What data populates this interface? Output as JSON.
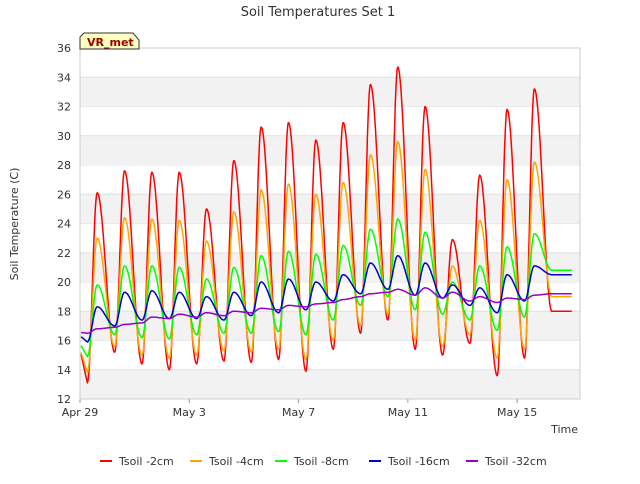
{
  "chart_data": {
    "type": "line",
    "title": "Soil Temperatures Set 1",
    "xlabel": "Time",
    "ylabel": "Soil Temperature (C)",
    "station_badge": "VR_met",
    "xlim": [
      0,
      18.3
    ],
    "ylim": [
      12,
      36
    ],
    "yticks": [
      12,
      14,
      16,
      18,
      20,
      22,
      24,
      26,
      28,
      30,
      32,
      34,
      36
    ],
    "xticks": [
      {
        "day": 0,
        "label": "Apr 29"
      },
      {
        "day": 4,
        "label": "May 3"
      },
      {
        "day": 8,
        "label": "May 7"
      },
      {
        "day": 12,
        "label": "May 11"
      },
      {
        "day": 16,
        "label": "May 15"
      }
    ],
    "x_unit": "days since Apr 29",
    "grid": "horizontal-bands",
    "legend_position": "bottom",
    "series": [
      {
        "name": "Tsoil -2cm",
        "color": "#ff0000",
        "daily_max": [
          26.1,
          27.6,
          27.5,
          27.5,
          25.0,
          28.3,
          30.6,
          30.9,
          29.7,
          30.9,
          33.5,
          34.7,
          32.0,
          22.9,
          27.3,
          31.8,
          33.2
        ],
        "daily_min": [
          13.1,
          15.2,
          14.4,
          14.0,
          14.4,
          14.6,
          14.5,
          14.7,
          13.9,
          15.4,
          16.5,
          17.4,
          15.4,
          15.0,
          15.8,
          13.6,
          14.8,
          18.0
        ]
      },
      {
        "name": "Tsoil -4cm",
        "color": "#ffa500",
        "daily_max": [
          23.0,
          24.4,
          24.3,
          24.2,
          22.8,
          24.8,
          26.3,
          26.7,
          26.0,
          26.8,
          28.7,
          29.6,
          27.7,
          21.1,
          24.2,
          27.0,
          28.2
        ],
        "daily_min": [
          13.8,
          15.6,
          15.0,
          14.8,
          15.0,
          15.3,
          15.2,
          15.4,
          14.7,
          16.0,
          17.0,
          17.8,
          16.0,
          15.6,
          16.4,
          14.8,
          15.4,
          19.0
        ]
      },
      {
        "name": "Tsoil -8cm",
        "color": "#00ff00",
        "daily_max": [
          19.8,
          21.1,
          21.1,
          21.0,
          20.2,
          21.0,
          21.8,
          22.1,
          21.9,
          22.5,
          23.6,
          24.3,
          23.4,
          20.0,
          21.1,
          22.4,
          23.3
        ],
        "daily_min": [
          14.9,
          16.4,
          16.2,
          16.1,
          16.4,
          16.5,
          16.5,
          16.6,
          16.4,
          17.4,
          18.4,
          19.0,
          18.1,
          17.8,
          17.4,
          16.7,
          17.6,
          20.8
        ]
      },
      {
        "name": "Tsoil -16cm",
        "color": "#0000cc",
        "daily_max": [
          18.3,
          19.3,
          19.4,
          19.3,
          19.0,
          19.3,
          20.0,
          20.2,
          20.0,
          20.5,
          21.3,
          21.8,
          21.3,
          19.8,
          19.6,
          20.5,
          21.1
        ],
        "daily_min": [
          15.9,
          17.0,
          17.4,
          17.5,
          17.5,
          17.4,
          17.7,
          17.9,
          18.1,
          18.7,
          19.2,
          19.5,
          19.1,
          18.9,
          18.4,
          17.9,
          18.7,
          20.5
        ]
      },
      {
        "name": "Tsoil -32cm",
        "color": "#9900cc",
        "daily_max": [
          16.8,
          17.1,
          17.6,
          17.8,
          17.9,
          18.0,
          18.2,
          18.4,
          18.5,
          18.8,
          19.2,
          19.5,
          19.6,
          19.3,
          19.0,
          18.9,
          19.1
        ],
        "daily_min": [
          16.5,
          16.9,
          17.2,
          17.5,
          17.6,
          17.7,
          17.9,
          18.1,
          18.3,
          18.6,
          19.0,
          19.3,
          19.1,
          18.9,
          18.7,
          18.6,
          18.8,
          19.2
        ]
      }
    ]
  }
}
